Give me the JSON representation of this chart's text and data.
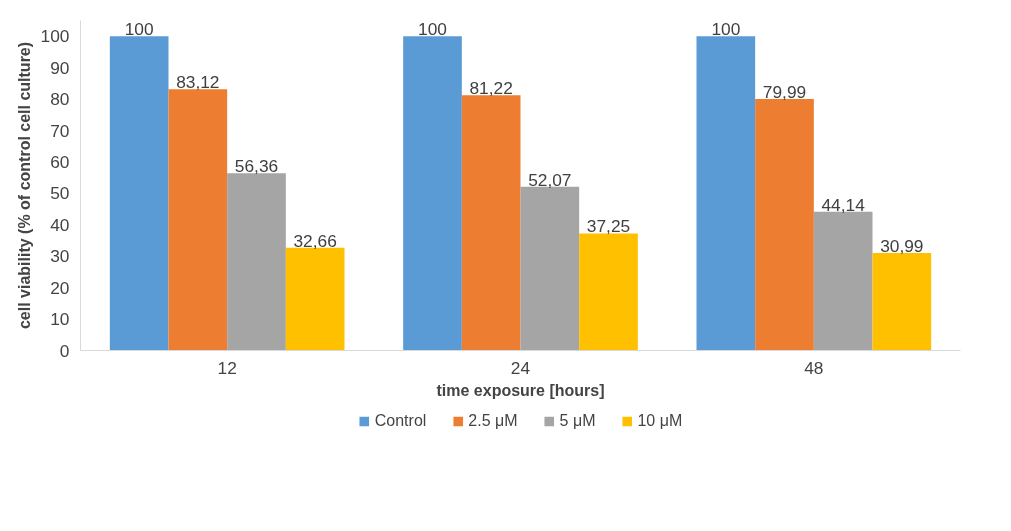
{
  "chart_data": {
    "type": "bar",
    "xlabel": "time exposure [hours]",
    "ylabel": "cell viability (% of control cell culture)",
    "categories": [
      "12",
      "24",
      "48"
    ],
    "series": [
      {
        "name": "Control",
        "color": "#5b9bd5",
        "values": [
          100,
          100,
          100
        ],
        "value_labels": [
          "100",
          "100",
          "100"
        ]
      },
      {
        "name": "2.5 μM",
        "color": "#ed7d31",
        "values": [
          83.12,
          81.22,
          79.99
        ],
        "value_labels": [
          "83,12",
          "81,22",
          "79,99"
        ]
      },
      {
        "name": "5 μM",
        "color": "#a5a5a5",
        "values": [
          56.36,
          52.07,
          44.14
        ],
        "value_labels": [
          "56,36",
          "52,07",
          "44,14"
        ]
      },
      {
        "name": "10 μM",
        "color": "#ffc000",
        "values": [
          32.66,
          37.25,
          30.99
        ],
        "value_labels": [
          "32,66",
          "37,25",
          "30,99"
        ]
      }
    ],
    "ylim": [
      0,
      105
    ],
    "yticks": [
      0,
      10,
      20,
      30,
      40,
      50,
      60,
      70,
      80,
      90,
      100
    ],
    "grid": false,
    "legend": "bottom"
  }
}
